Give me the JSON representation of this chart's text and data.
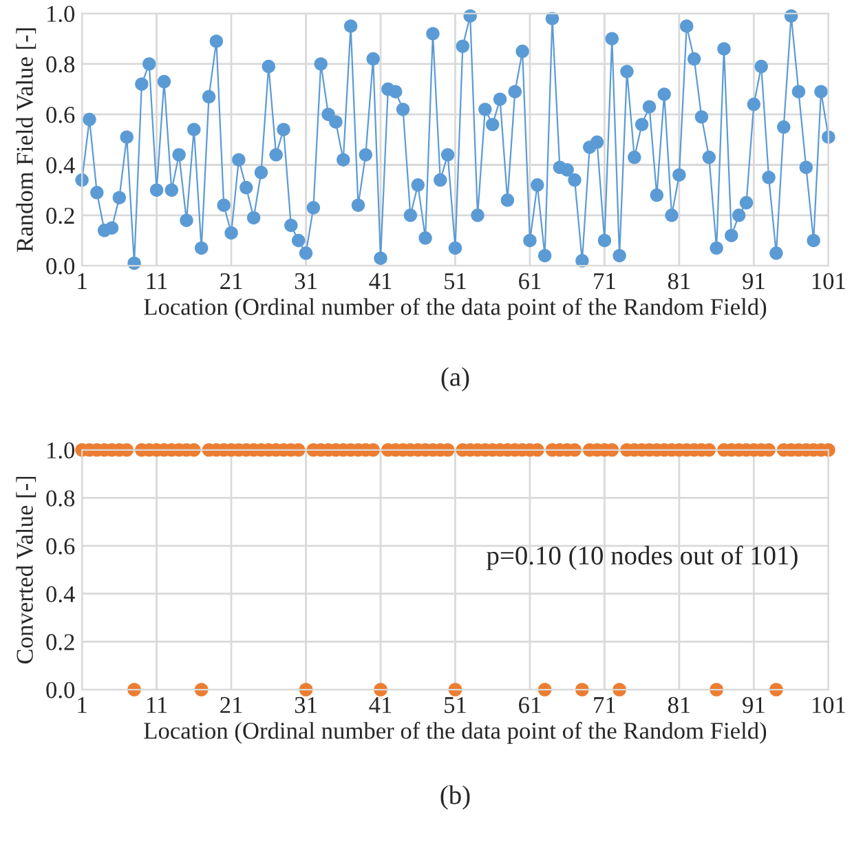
{
  "chart_data": [
    {
      "type": "line",
      "ylabel": "Random Field Value [-]",
      "xlabel": "Location (Ordinal number of the data point of the Random Field)",
      "annotations": [
        "(a)"
      ],
      "x": [
        1,
        2,
        3,
        4,
        5,
        6,
        7,
        8,
        9,
        10,
        11,
        12,
        13,
        14,
        15,
        16,
        17,
        18,
        19,
        20,
        21,
        22,
        23,
        24,
        25,
        26,
        27,
        28,
        29,
        30,
        31,
        32,
        33,
        34,
        35,
        36,
        37,
        38,
        39,
        40,
        41,
        42,
        43,
        44,
        45,
        46,
        47,
        48,
        49,
        50,
        51,
        52,
        53,
        54,
        55,
        56,
        57,
        58,
        59,
        60,
        61,
        62,
        63,
        64,
        65,
        66,
        67,
        68,
        69,
        70,
        71,
        72,
        73,
        74,
        75,
        76,
        77,
        78,
        79,
        80,
        81,
        82,
        83,
        84,
        85,
        86,
        87,
        88,
        89,
        90,
        91,
        92,
        93,
        94,
        95,
        96,
        97,
        98,
        99,
        100,
        101
      ],
      "series": [
        {
          "color": "#5b9bd5",
          "values": [
            0.34,
            0.58,
            0.29,
            0.14,
            0.15,
            0.27,
            0.51,
            0.01,
            0.72,
            0.8,
            0.3,
            0.73,
            0.3,
            0.44,
            0.18,
            0.54,
            0.07,
            0.67,
            0.89,
            0.24,
            0.13,
            0.42,
            0.31,
            0.19,
            0.37,
            0.79,
            0.44,
            0.54,
            0.16,
            0.1,
            0.05,
            0.23,
            0.8,
            0.6,
            0.57,
            0.42,
            0.95,
            0.24,
            0.44,
            0.82,
            0.03,
            0.7,
            0.69,
            0.62,
            0.2,
            0.32,
            0.11,
            0.92,
            0.34,
            0.44,
            0.07,
            0.87,
            0.99,
            0.2,
            0.62,
            0.56,
            0.66,
            0.26,
            0.69,
            0.85,
            0.1,
            0.32,
            0.04,
            0.98,
            0.39,
            0.38,
            0.34,
            0.02,
            0.47,
            0.49,
            0.1,
            0.9,
            0.04,
            0.77,
            0.43,
            0.56,
            0.63,
            0.28,
            0.68,
            0.2,
            0.36,
            0.95,
            0.82,
            0.59,
            0.43,
            0.07,
            0.86,
            0.12,
            0.2,
            0.25,
            0.64,
            0.79,
            0.35,
            0.05,
            0.55,
            0.99,
            0.69,
            0.39,
            0.1,
            0.69,
            0.51
          ]
        }
      ],
      "marker": "circle",
      "line_style": "solid",
      "grid": true,
      "legend": false,
      "xlim": [
        1,
        101
      ],
      "xticks": [
        1,
        11,
        21,
        31,
        41,
        51,
        61,
        71,
        81,
        91,
        101
      ],
      "ylim": [
        0,
        1
      ],
      "yticks": [
        {
          "value": 0,
          "label": "0.0"
        },
        {
          "value": 0.2,
          "label": "0.2"
        },
        {
          "value": 0.4,
          "label": "0.4"
        },
        {
          "value": 0.6,
          "label": "0.6"
        },
        {
          "value": 0.8,
          "label": "0.8"
        },
        {
          "value": 1,
          "label": "1.0"
        }
      ]
    },
    {
      "type": "scatter",
      "ylabel": "Converted Value [-]",
      "xlabel": "Location (Ordinal number of the data point of the Random Field)",
      "annotations": [
        "p=0.10 (10 nodes out of 101)",
        "(b)"
      ],
      "x": [
        1,
        2,
        3,
        4,
        5,
        6,
        7,
        8,
        9,
        10,
        11,
        12,
        13,
        14,
        15,
        16,
        17,
        18,
        19,
        20,
        21,
        22,
        23,
        24,
        25,
        26,
        27,
        28,
        29,
        30,
        31,
        32,
        33,
        34,
        35,
        36,
        37,
        38,
        39,
        40,
        41,
        42,
        43,
        44,
        45,
        46,
        47,
        48,
        49,
        50,
        51,
        52,
        53,
        54,
        55,
        56,
        57,
        58,
        59,
        60,
        61,
        62,
        63,
        64,
        65,
        66,
        67,
        68,
        69,
        70,
        71,
        72,
        73,
        74,
        75,
        76,
        77,
        78,
        79,
        80,
        81,
        82,
        83,
        84,
        85,
        86,
        87,
        88,
        89,
        90,
        91,
        92,
        93,
        94,
        95,
        96,
        97,
        98,
        99,
        100,
        101
      ],
      "series": [
        {
          "color": "#ed7d31",
          "values": [
            1,
            1,
            1,
            1,
            1,
            1,
            1,
            0,
            1,
            1,
            1,
            1,
            1,
            1,
            1,
            1,
            0,
            1,
            1,
            1,
            1,
            1,
            1,
            1,
            1,
            1,
            1,
            1,
            1,
            1,
            0,
            1,
            1,
            1,
            1,
            1,
            1,
            1,
            1,
            1,
            0,
            1,
            1,
            1,
            1,
            1,
            1,
            1,
            1,
            1,
            0,
            1,
            1,
            1,
            1,
            1,
            1,
            1,
            1,
            1,
            1,
            1,
            0,
            1,
            1,
            1,
            1,
            0,
            1,
            1,
            1,
            1,
            0,
            1,
            1,
            1,
            1,
            1,
            1,
            1,
            1,
            1,
            1,
            1,
            1,
            0,
            1,
            1,
            1,
            1,
            1,
            1,
            1,
            0,
            1,
            1,
            1,
            1,
            1,
            1,
            1
          ]
        }
      ],
      "marker": "circle",
      "grid": true,
      "legend": false,
      "xlim": [
        1,
        101
      ],
      "xticks": [
        1,
        11,
        21,
        31,
        41,
        51,
        61,
        71,
        81,
        91,
        101
      ],
      "ylim": [
        0,
        1
      ],
      "yticks": [
        {
          "value": 0,
          "label": "0.0"
        },
        {
          "value": 0.2,
          "label": "0.2"
        },
        {
          "value": 0.4,
          "label": "0.4"
        },
        {
          "value": 0.6,
          "label": "0.6"
        },
        {
          "value": 0.8,
          "label": "0.8"
        },
        {
          "value": 1,
          "label": "1.0"
        }
      ]
    }
  ]
}
